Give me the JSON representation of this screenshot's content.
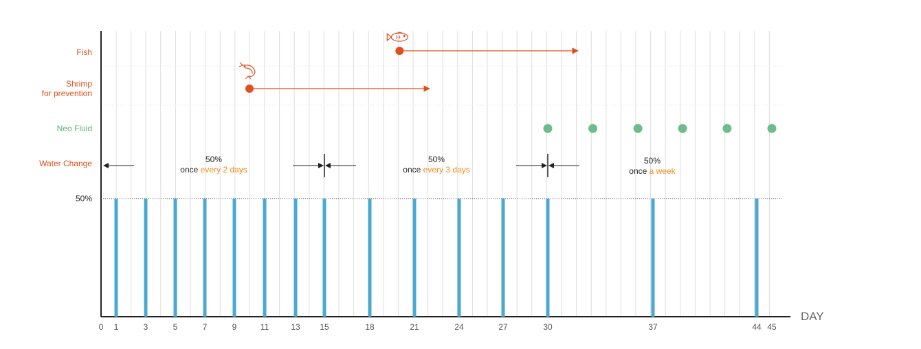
{
  "chart_data": {
    "type": "bar",
    "xlabel": "DAY",
    "x_ticks": [
      0,
      1,
      3,
      5,
      7,
      9,
      11,
      13,
      15,
      18,
      21,
      24,
      27,
      30,
      37,
      44,
      45
    ],
    "water_change_days": [
      1,
      3,
      5,
      7,
      9,
      11,
      13,
      15,
      18,
      21,
      24,
      27,
      30,
      37,
      44
    ],
    "water_change_value": 50,
    "y_reference_label": "50%",
    "rows": {
      "fish": {
        "label": "Fish",
        "start_day": 20,
        "end_day": 32
      },
      "shrimp": {
        "label_line1": "Shrimp",
        "label_line2": "for prevention",
        "start_day": 10,
        "end_day": 22
      },
      "neo_fluid": {
        "label": "Neo Fluid",
        "days": [
          30,
          33,
          36,
          39,
          42,
          45
        ]
      },
      "water_change": {
        "label": "Water Change"
      }
    },
    "annotations": [
      {
        "pct": "50%",
        "prefix": "once ",
        "accent": "every 2 days"
      },
      {
        "pct": "50%",
        "prefix": "once ",
        "accent": "every 3 days"
      },
      {
        "pct": "50%",
        "prefix": "once ",
        "accent": "a week"
      }
    ],
    "phase_dividers": [
      15,
      30
    ],
    "colors": {
      "bar": "#4aa8d1",
      "fish": "#e0501e",
      "shrimp": "#e0501e",
      "neo_fluid": "#6cbd8a",
      "accent": "#f28a1b",
      "grid": "#dddddd"
    },
    "icons": [
      "fish-icon",
      "shrimp-icon"
    ]
  }
}
